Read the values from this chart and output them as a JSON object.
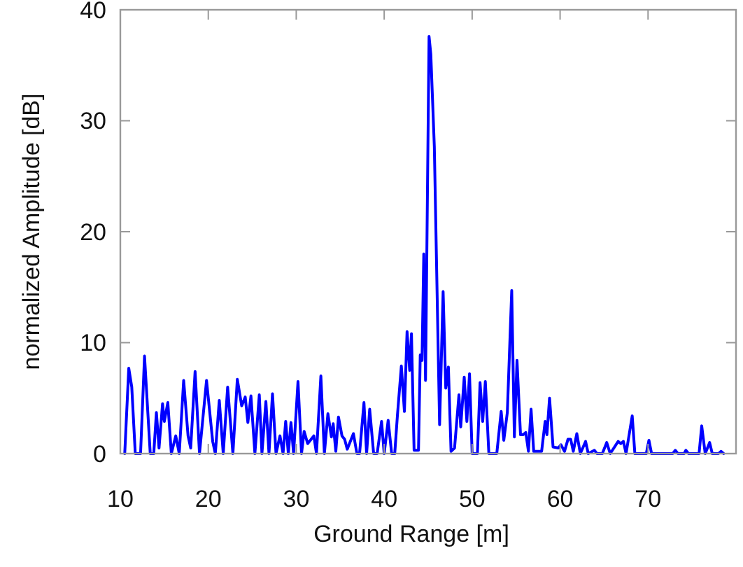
{
  "chart_data": {
    "type": "line",
    "xlabel": "Ground Range [m]",
    "ylabel": "normalized Amplitude [dB]",
    "xlim": [
      10,
      80
    ],
    "ylim": [
      0,
      40
    ],
    "xticks": [
      10,
      20,
      30,
      40,
      50,
      60,
      70
    ],
    "yticks": [
      0,
      10,
      20,
      30,
      40
    ],
    "x": [
      10.5,
      10.96,
      11.3,
      11.7,
      12.3,
      12.75,
      13.4,
      13.8,
      14.1,
      14.4,
      14.8,
      15.0,
      15.4,
      15.8,
      16.3,
      16.7,
      17.2,
      17.7,
      18.0,
      18.5,
      19.0,
      19.8,
      20.5,
      20.8,
      21.25,
      21.7,
      22.2,
      22.8,
      23.3,
      23.8,
      24.2,
      24.5,
      24.85,
      25.3,
      25.8,
      26.1,
      26.55,
      26.9,
      27.3,
      27.7,
      28.15,
      28.5,
      28.8,
      29.1,
      29.4,
      29.7,
      30.2,
      30.6,
      30.9,
      31.3,
      32.0,
      32.3,
      32.8,
      33.2,
      33.6,
      34.0,
      34.2,
      34.5,
      34.8,
      35.2,
      35.5,
      35.8,
      36.5,
      36.9,
      37.2,
      37.7,
      38.0,
      38.35,
      38.8,
      39.2,
      39.7,
      40.0,
      40.45,
      40.85,
      41.2,
      41.5,
      41.95,
      42.3,
      42.6,
      42.9,
      43.1,
      43.4,
      43.9,
      44.1,
      44.3,
      44.5,
      44.7,
      45.1,
      45.3,
      45.7,
      46.3,
      46.7,
      47.0,
      47.3,
      47.6,
      48.0,
      48.5,
      48.7,
      49.1,
      49.4,
      49.7,
      50.0,
      50.6,
      50.9,
      51.2,
      51.5,
      51.9,
      52.8,
      53.3,
      53.6,
      54.0,
      54.5,
      54.8,
      55.1,
      55.5,
      55.8,
      56.1,
      56.4,
      56.7,
      57.0,
      57.9,
      58.3,
      58.5,
      58.8,
      59.2,
      59.8,
      60.1,
      60.5,
      60.9,
      61.2,
      61.5,
      61.9,
      62.3,
      62.9,
      63.2,
      63.9,
      64.2,
      64.8,
      65.3,
      65.7,
      66.6,
      66.9,
      67.2,
      67.5,
      68.2,
      68.5,
      69.8,
      70.1,
      70.4,
      72.8,
      73.1,
      73.4,
      74.1,
      74.3,
      74.6,
      75.8,
      76.1,
      76.5,
      77.0,
      77.3,
      78.0,
      78.3,
      78.6
    ],
    "series": [
      {
        "color": "#0000ff",
        "values": [
          0,
          7.7,
          6.0,
          0,
          0,
          8.8,
          0,
          0,
          3.7,
          0.5,
          4.5,
          2.9,
          4.6,
          0,
          1.6,
          0,
          6.6,
          1.6,
          0.5,
          7.4,
          0,
          6.6,
          1.1,
          0,
          4.8,
          0,
          6.0,
          0,
          6.7,
          4.3,
          5.1,
          2.8,
          5.2,
          0,
          5.3,
          0,
          4.7,
          0,
          5.4,
          0,
          1.6,
          0,
          2.9,
          0,
          2.8,
          0,
          6.5,
          0,
          2.0,
          0.9,
          1.6,
          0,
          7.0,
          0,
          3.6,
          1.5,
          2.7,
          0.2,
          3.3,
          1.6,
          1.3,
          0.4,
          1.8,
          0,
          0,
          4.6,
          0,
          4.0,
          0,
          0,
          2.9,
          0,
          3.0,
          0,
          0,
          3.4,
          7.9,
          3.8,
          11.0,
          7.5,
          10.8,
          0.3,
          0.3,
          8.9,
          8.4,
          18.0,
          6.6,
          37.6,
          36,
          27.7,
          2.6,
          14.6,
          5.9,
          7.8,
          0.2,
          0.5,
          5.3,
          2.4,
          6.9,
          2.9,
          7.2,
          0,
          0,
          6.4,
          2.9,
          6.5,
          0,
          0,
          3.8,
          1.2,
          3.7,
          14.7,
          1.5,
          8.4,
          1.7,
          1.7,
          1.9,
          0.2,
          4.0,
          0.2,
          0.2,
          2.9,
          1.7,
          5.0,
          0.6,
          0.5,
          0.8,
          0.2,
          1.3,
          1.3,
          0.2,
          1.8,
          0,
          1.1,
          0,
          0.3,
          0,
          0,
          1.0,
          0,
          1.1,
          0.9,
          1.1,
          0,
          3.4,
          0,
          0,
          1.2,
          0,
          0,
          0.3,
          0,
          0,
          0.3,
          0,
          0,
          2.5,
          0,
          1.0,
          0,
          0,
          0.2,
          0
        ]
      }
    ]
  }
}
